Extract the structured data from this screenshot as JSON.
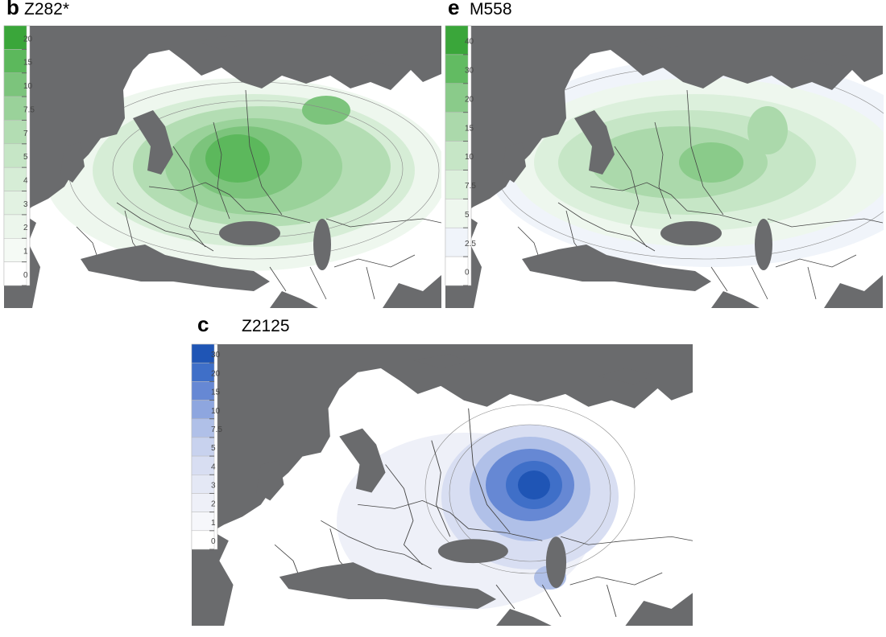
{
  "panels": [
    {
      "letter": "b",
      "title": "Z282*",
      "legend": {
        "ticks": [
          20,
          15,
          10,
          7.5,
          7,
          5,
          4,
          3,
          2,
          1,
          0
        ],
        "colors": [
          "#3aa63a",
          "#5cb85c",
          "#7cc47c",
          "#9ad29a",
          "#b3ddb3",
          "#c6e6c6",
          "#d6edd6",
          "#e2f2e2",
          "#ecf6ec",
          "#f5faf5",
          "#ffffff"
        ]
      }
    },
    {
      "letter": "e",
      "title": "M558",
      "legend": {
        "ticks": [
          40,
          30,
          20,
          15,
          10,
          7.5,
          5,
          2.5,
          0
        ],
        "colors": [
          "#3aa63a",
          "#62bb62",
          "#8acb8a",
          "#abd9ab",
          "#c6e6c6",
          "#dcf0dc",
          "#eef7ee",
          "#f0f4fa",
          "#ffffff"
        ]
      }
    },
    {
      "letter": "c",
      "title": "Z2125",
      "legend": {
        "ticks": [
          30,
          20,
          15,
          10,
          7.5,
          5,
          4,
          3,
          2,
          1,
          0
        ],
        "colors": [
          "#1f55b5",
          "#3f6fc8",
          "#6688d4",
          "#8ea6df",
          "#b0c0e8",
          "#c8d2ee",
          "#d8def2",
          "#e4e8f5",
          "#eef0f8",
          "#f6f7fb",
          "#ffffff"
        ]
      }
    }
  ]
}
